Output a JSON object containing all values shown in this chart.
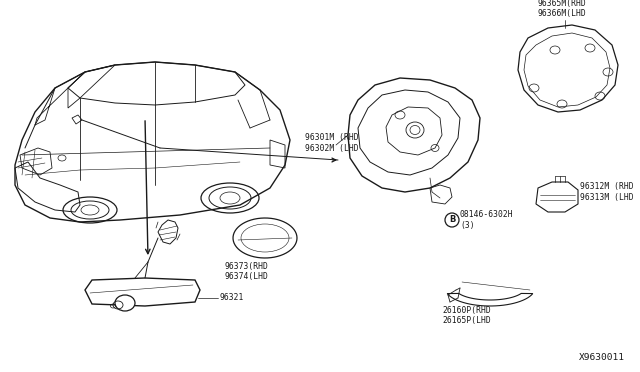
{
  "background_color": "#ffffff",
  "fig_width": 6.4,
  "fig_height": 3.72,
  "dpi": 100,
  "labels": {
    "part_96301_96302": "96301M (RHD\n96302M (LHD",
    "part_96365_96366": "96365M(RHD\n96366M(LHD",
    "part_96373_96374": "96373(RHD\n96374(LHD",
    "part_96321": "96321",
    "part_96312_96313": "96312M (RHD\n96313M (LHD",
    "part_08146": "08146-6302H\n(3)",
    "part_26160_26165": "26160P(RHD\n26165P(LHD",
    "diagram_code": "X9630011"
  },
  "text_color": "#1a1a1a",
  "line_color": "#1a1a1a",
  "font_size": 5.8,
  "lw": 0.8
}
